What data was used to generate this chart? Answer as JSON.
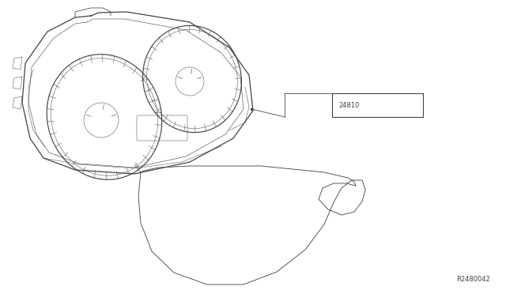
{
  "bg_color": "#ffffff",
  "line_color": "#444444",
  "text_color": "#444444",
  "label_part": "24810",
  "part_code": "R2480042",
  "lw": 0.7,
  "fig_w": 6.4,
  "fig_h": 3.72,
  "dpi": 100
}
